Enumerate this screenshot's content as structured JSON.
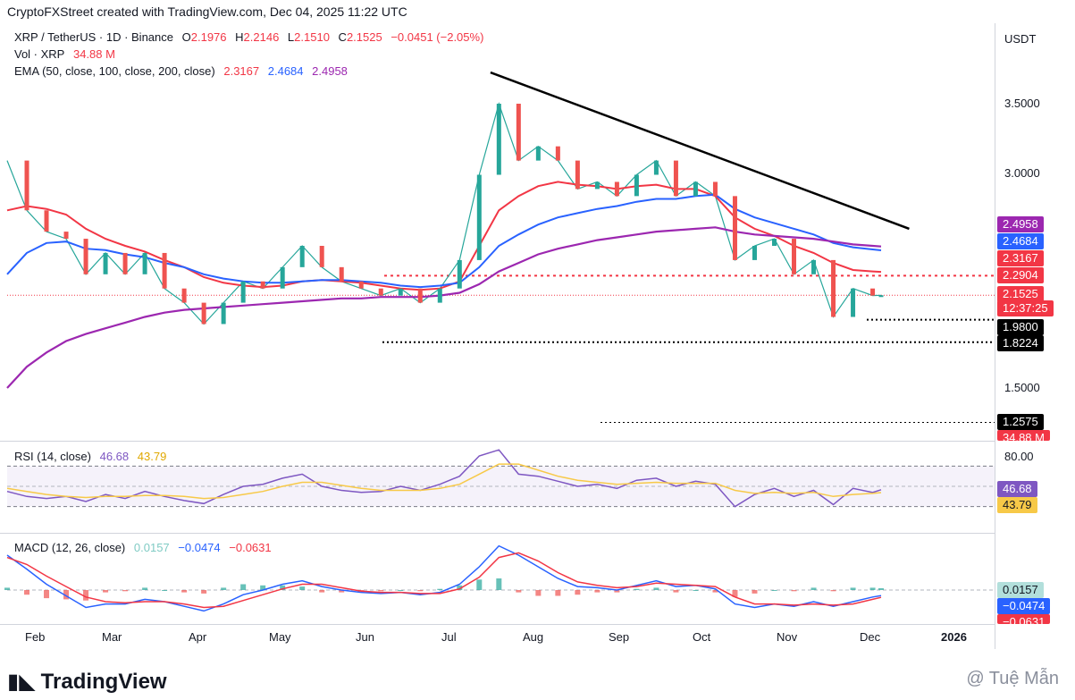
{
  "header": {
    "credit": "CryptoFXStreet created with TradingView.com, Dec 04, 2025 11:22 UTC"
  },
  "legend": {
    "symbol": "XRP / TetherUS · 1D · Binance",
    "o_label": "O",
    "o": "2.1976",
    "h_label": "H",
    "h": "2.2146",
    "l_label": "L",
    "l": "2.1510",
    "c_label": "C",
    "c": "2.1525",
    "change": "−0.0451 (−2.05%)",
    "vol_label": "Vol · XRP",
    "vol": "34.88 M",
    "ema_label": "EMA (50, close, 100, close, 200, close)",
    "ema50": "2.3167",
    "ema100": "2.4684",
    "ema200": "2.4958",
    "rsi_label": "RSI (14, close)",
    "rsi": "46.68",
    "rsi_ma": "43.79",
    "macd_label": "MACD (12, 26, close)",
    "macd_hist": "0.0157",
    "macd": "−0.0474",
    "macd_signal": "−0.0631"
  },
  "axis": {
    "currency": "USDT",
    "price_ticks": [
      "3.5000",
      "3.0000",
      "1.5000"
    ],
    "rsi_ticks": [
      "80.00"
    ],
    "months": [
      "Feb",
      "Mar",
      "Apr",
      "May",
      "Jun",
      "Jul",
      "Aug",
      "Sep",
      "Oct",
      "Nov",
      "Dec",
      "2026"
    ]
  },
  "price_labels": [
    {
      "text": "2.4958",
      "color": "#9c27b0"
    },
    {
      "text": "2.4684",
      "color": "#2962ff"
    },
    {
      "text": "2.3167",
      "color": "#f23645"
    },
    {
      "text": "2.2904",
      "color": "#f23645"
    },
    {
      "text": "2.1525",
      "color": "#f23645"
    },
    {
      "text": "12:37:25",
      "color": "#f23645"
    },
    {
      "text": "1.9800",
      "color": "#000000"
    },
    {
      "text": "1.8224",
      "color": "#000000"
    },
    {
      "text": "1.2575",
      "color": "#000000"
    },
    {
      "text": "34.88 M",
      "color": "#f23645"
    }
  ],
  "indicator_labels": [
    {
      "text": "46.68",
      "color": "#7e57c2"
    },
    {
      "text": "43.79",
      "color": "#f7c948"
    },
    {
      "text": "0.0157",
      "color": "#b2dfdb"
    },
    {
      "text": "−0.0474",
      "color": "#2962ff"
    },
    {
      "text": "−0.0631",
      "color": "#f23645"
    }
  ],
  "colors": {
    "up": "#26a69a",
    "down": "#ef5350",
    "ema50": "#f23645",
    "ema100": "#2962ff",
    "ema200": "#9c27b0",
    "rsi": "#7e57c2",
    "rsi_ma": "#f7c948",
    "macd": "#2962ff",
    "signal": "#f23645"
  },
  "footer": {
    "brand": "TradingView",
    "watermark": "@ Tuệ Mẫn"
  },
  "chart_data": {
    "type": "line",
    "title": "XRP / TetherUS · 1D · Binance",
    "xlabel": "",
    "ylabel": "USDT",
    "x": [
      "2025-01-27",
      "2025-02-03",
      "2025-02-10",
      "2025-02-17",
      "2025-02-24",
      "2025-03-03",
      "2025-03-10",
      "2025-03-17",
      "2025-03-24",
      "2025-03-31",
      "2025-04-07",
      "2025-04-14",
      "2025-04-21",
      "2025-04-28",
      "2025-05-05",
      "2025-05-12",
      "2025-05-19",
      "2025-05-26",
      "2025-06-02",
      "2025-06-09",
      "2025-06-16",
      "2025-06-23",
      "2025-06-30",
      "2025-07-07",
      "2025-07-14",
      "2025-07-21",
      "2025-07-28",
      "2025-08-04",
      "2025-08-11",
      "2025-08-18",
      "2025-08-25",
      "2025-09-01",
      "2025-09-08",
      "2025-09-15",
      "2025-09-22",
      "2025-09-29",
      "2025-10-06",
      "2025-10-13",
      "2025-10-20",
      "2025-10-27",
      "2025-11-03",
      "2025-11-10",
      "2025-11-17",
      "2025-11-24",
      "2025-12-01",
      "2025-12-04"
    ],
    "series": [
      {
        "name": "XRP / TetherUS",
        "values": [
          3.1,
          2.75,
          2.6,
          2.55,
          2.3,
          2.45,
          2.3,
          2.45,
          2.2,
          2.1,
          1.95,
          2.1,
          2.25,
          2.2,
          2.35,
          2.5,
          2.35,
          2.25,
          2.2,
          2.15,
          2.2,
          2.1,
          2.2,
          2.4,
          3.0,
          3.5,
          3.1,
          3.2,
          3.1,
          2.9,
          2.95,
          2.85,
          3.0,
          3.1,
          2.85,
          2.95,
          2.85,
          2.4,
          2.5,
          2.55,
          2.3,
          2.4,
          2.0,
          2.2,
          2.15,
          2.1525
        ]
      },
      {
        "name": "EMA 50",
        "values": [
          2.75,
          2.78,
          2.76,
          2.72,
          2.62,
          2.55,
          2.5,
          2.46,
          2.4,
          2.35,
          2.28,
          2.24,
          2.22,
          2.21,
          2.22,
          2.25,
          2.26,
          2.25,
          2.24,
          2.22,
          2.2,
          2.19,
          2.2,
          2.25,
          2.5,
          2.75,
          2.85,
          2.92,
          2.95,
          2.93,
          2.92,
          2.9,
          2.92,
          2.93,
          2.9,
          2.9,
          2.85,
          2.7,
          2.62,
          2.57,
          2.5,
          2.45,
          2.38,
          2.33,
          2.32,
          2.3167
        ]
      },
      {
        "name": "EMA 100",
        "values": [
          2.3,
          2.45,
          2.52,
          2.53,
          2.48,
          2.47,
          2.44,
          2.42,
          2.38,
          2.35,
          2.3,
          2.27,
          2.25,
          2.24,
          2.24,
          2.25,
          2.26,
          2.26,
          2.25,
          2.24,
          2.22,
          2.21,
          2.22,
          2.24,
          2.35,
          2.5,
          2.58,
          2.65,
          2.7,
          2.73,
          2.76,
          2.78,
          2.81,
          2.83,
          2.83,
          2.85,
          2.86,
          2.76,
          2.7,
          2.66,
          2.62,
          2.58,
          2.52,
          2.49,
          2.475,
          2.4684
        ]
      },
      {
        "name": "EMA 200",
        "values": [
          1.5,
          1.65,
          1.75,
          1.83,
          1.88,
          1.92,
          1.96,
          2.0,
          2.03,
          2.05,
          2.06,
          2.07,
          2.08,
          2.09,
          2.1,
          2.11,
          2.12,
          2.13,
          2.13,
          2.14,
          2.14,
          2.14,
          2.15,
          2.17,
          2.23,
          2.32,
          2.38,
          2.44,
          2.48,
          2.51,
          2.54,
          2.56,
          2.58,
          2.6,
          2.61,
          2.62,
          2.63,
          2.6,
          2.58,
          2.57,
          2.56,
          2.55,
          2.53,
          2.51,
          2.5,
          2.4958
        ]
      }
    ],
    "horizontal_levels": [
      2.2904,
      1.98,
      1.8224,
      1.2575
    ],
    "trendline": [
      {
        "x": "2025-07-18",
        "y": 3.72
      },
      {
        "x": "2025-12-14",
        "y": 2.62
      }
    ],
    "ylim": [
      1.25,
      3.8
    ],
    "rsi": {
      "name": "RSI (14, close)",
      "last": 46.68,
      "ma_last": 43.79,
      "upper": 70,
      "lower": 30,
      "ylim": [
        0,
        100
      ],
      "values": [
        45,
        40,
        38,
        40,
        35,
        42,
        38,
        45,
        40,
        36,
        33,
        42,
        50,
        52,
        58,
        62,
        50,
        46,
        44,
        45,
        50,
        46,
        52,
        60,
        80,
        86,
        62,
        60,
        55,
        50,
        52,
        48,
        56,
        58,
        50,
        55,
        52,
        30,
        42,
        48,
        40,
        46,
        32,
        48,
        44,
        46.68
      ],
      "ma_values": [
        48,
        45,
        42,
        40,
        39,
        40,
        40,
        41,
        41,
        40,
        38,
        39,
        42,
        45,
        50,
        54,
        54,
        51,
        48,
        46,
        46,
        46,
        48,
        52,
        62,
        72,
        72,
        66,
        60,
        56,
        54,
        52,
        53,
        54,
        53,
        53,
        53,
        46,
        43,
        44,
        43,
        44,
        40,
        42,
        43,
        43.79
      ]
    },
    "macd": {
      "name": "MACD (12, 26, close)",
      "macd_last": -0.0474,
      "signal_last": -0.0631,
      "hist_last": 0.0157,
      "ylim": [
        -0.35,
        0.45
      ],
      "macd": [
        0.3,
        0.18,
        0.05,
        -0.05,
        -0.15,
        -0.12,
        -0.12,
        -0.08,
        -0.1,
        -0.14,
        -0.18,
        -0.12,
        -0.04,
        0.0,
        0.05,
        0.08,
        0.03,
        0.0,
        -0.02,
        -0.03,
        -0.02,
        -0.04,
        -0.02,
        0.05,
        0.2,
        0.38,
        0.3,
        0.2,
        0.1,
        0.03,
        0.02,
        0.0,
        0.04,
        0.08,
        0.03,
        0.04,
        0.01,
        -0.12,
        -0.15,
        -0.12,
        -0.14,
        -0.1,
        -0.14,
        -0.1,
        -0.06,
        -0.0474
      ],
      "signal": [
        0.28,
        0.22,
        0.12,
        0.03,
        -0.06,
        -0.1,
        -0.11,
        -0.1,
        -0.1,
        -0.12,
        -0.15,
        -0.14,
        -0.09,
        -0.04,
        0.01,
        0.05,
        0.05,
        0.02,
        -0.01,
        -0.02,
        -0.02,
        -0.03,
        -0.03,
        0.01,
        0.11,
        0.28,
        0.32,
        0.25,
        0.15,
        0.07,
        0.04,
        0.02,
        0.03,
        0.06,
        0.05,
        0.04,
        0.03,
        -0.06,
        -0.12,
        -0.12,
        -0.13,
        -0.12,
        -0.13,
        -0.12,
        -0.08,
        -0.0631
      ]
    }
  }
}
